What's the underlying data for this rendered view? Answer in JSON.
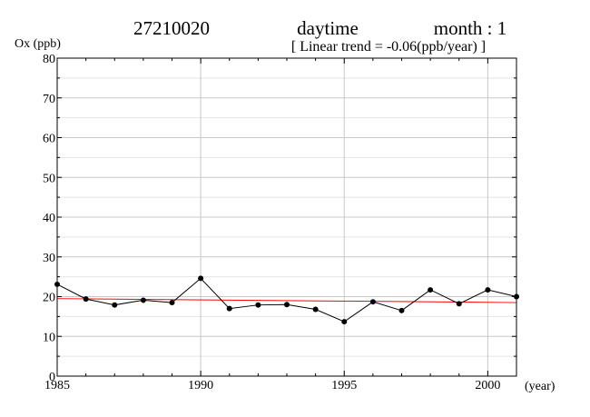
{
  "chart_data": {
    "type": "line",
    "header": {
      "station": "27210020",
      "period": "daytime",
      "month_text": "month : 1",
      "trend_text": "[ Linear trend = -0.06(ppb/year) ]"
    },
    "ylabel": "Ox (ppb)",
    "xlabel": "(year)",
    "xlim": [
      1985,
      2001
    ],
    "ylim": [
      0,
      80
    ],
    "x_ticks": [
      1985,
      1990,
      1995,
      2000
    ],
    "x_tick_labels": [
      "1985",
      "1990",
      "1995",
      "2000"
    ],
    "y_ticks": [
      0,
      10,
      20,
      30,
      40,
      50,
      60,
      70,
      80
    ],
    "y_tick_labels": [
      "0",
      "10",
      "20",
      "30",
      "40",
      "50",
      "60",
      "70",
      "80"
    ],
    "y_minor_step": 5,
    "grid": true,
    "series": [
      {
        "x": [
          1985,
          1986,
          1987,
          1988,
          1989,
          1990,
          1991,
          1992,
          1993,
          1994,
          1995,
          1996,
          1997,
          1998,
          1999,
          2000,
          2001
        ],
        "values": [
          23.1,
          19.4,
          17.9,
          19.1,
          18.5,
          24.6,
          17.0,
          17.9,
          18.0,
          16.8,
          13.7,
          18.7,
          16.5,
          21.7,
          18.2,
          21.7,
          20.0
        ],
        "color": "#000000"
      }
    ],
    "trend_line": {
      "x": [
        1985,
        2001
      ],
      "values": [
        19.5,
        18.5
      ],
      "color": "#ff0000"
    }
  }
}
